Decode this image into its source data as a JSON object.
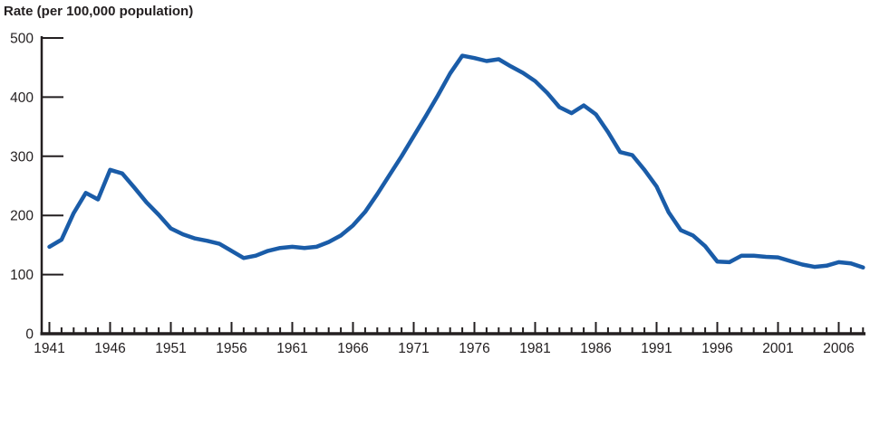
{
  "title": "Rate (per 100,000 population)",
  "chart_data": {
    "type": "line",
    "title": "Rate (per 100,000 population)",
    "xlabel": "",
    "ylabel": "Rate (per 100,000 population)",
    "series_name": "Rate per 100,000 population",
    "x": [
      1941,
      1942,
      1943,
      1944,
      1945,
      1946,
      1947,
      1948,
      1949,
      1950,
      1951,
      1952,
      1953,
      1954,
      1955,
      1956,
      1957,
      1958,
      1959,
      1960,
      1961,
      1962,
      1963,
      1964,
      1965,
      1966,
      1967,
      1968,
      1969,
      1970,
      1971,
      1972,
      1973,
      1974,
      1975,
      1976,
      1977,
      1978,
      1979,
      1980,
      1981,
      1982,
      1983,
      1984,
      1985,
      1986,
      1987,
      1988,
      1989,
      1990,
      1991,
      1992,
      1993,
      1994,
      1995,
      1996,
      1997,
      1998,
      1999,
      2000,
      2001,
      2002,
      2003,
      2004,
      2005,
      2006,
      2007,
      2008
    ],
    "values": [
      147,
      159,
      204,
      238,
      227,
      277,
      271,
      247,
      222,
      201,
      178,
      168,
      161,
      157,
      152,
      140,
      128,
      132,
      140,
      145,
      147,
      145,
      147,
      155,
      166,
      183,
      206,
      236,
      268,
      300,
      334,
      368,
      403,
      440,
      470,
      466,
      461,
      464,
      452,
      441,
      427,
      407,
      383,
      373,
      386,
      371,
      341,
      307,
      302,
      277,
      249,
      205,
      175,
      166,
      148,
      122,
      121,
      132,
      132,
      130,
      129,
      123,
      117,
      113,
      115,
      121,
      119,
      112
    ],
    "xlim": [
      1941,
      2008
    ],
    "ylim": [
      0,
      500
    ],
    "yticks": [
      0,
      100,
      200,
      300,
      400,
      500
    ],
    "xticks": [
      1941,
      1946,
      1951,
      1956,
      1961,
      1966,
      1971,
      1976,
      1981,
      1986,
      1991,
      1996,
      2001,
      2006
    ],
    "grid": false,
    "legend": false,
    "line_color": "#1a5ca8",
    "axis_color": "#231f20"
  }
}
